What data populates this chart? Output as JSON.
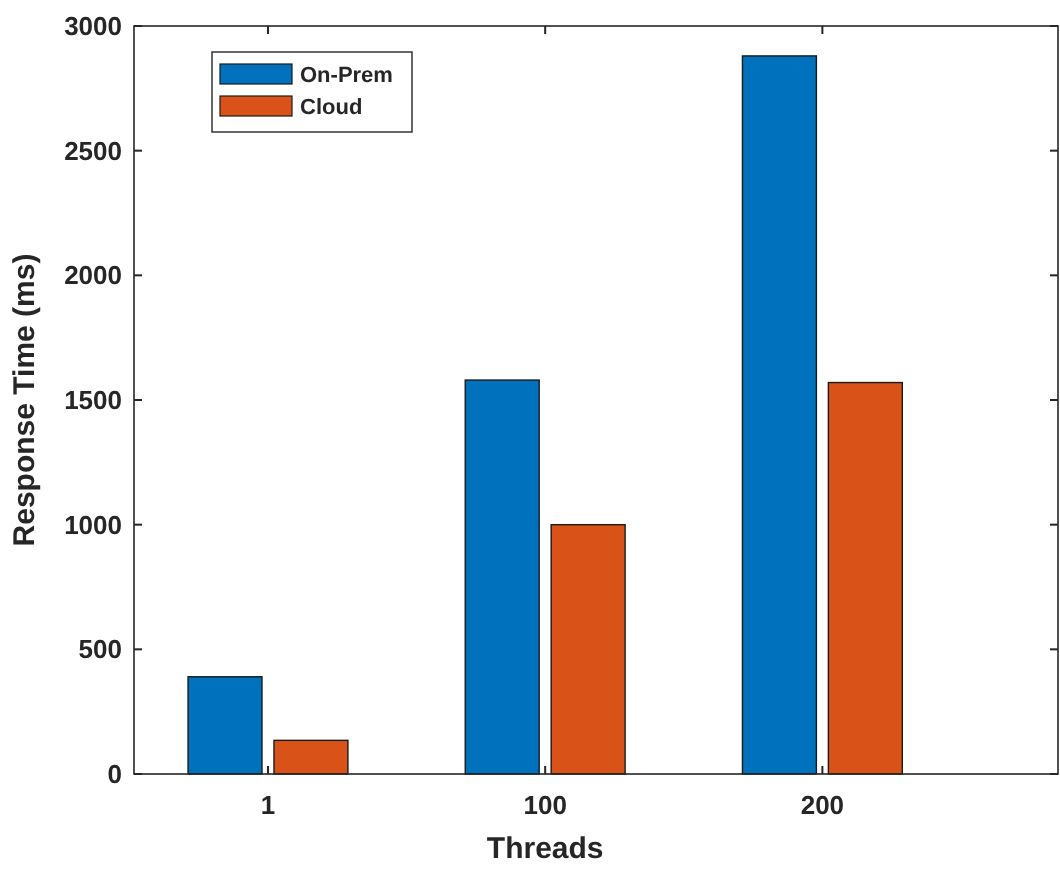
{
  "chart_data": {
    "type": "bar",
    "xlabel": "Threads",
    "ylabel": "Response Time (ms)",
    "categories": [
      "1",
      "100",
      "200"
    ],
    "series": [
      {
        "name": "On-Prem",
        "color": "#0072bd",
        "values": [
          390,
          1580,
          2880
        ]
      },
      {
        "name": "Cloud",
        "color": "#d95319",
        "values": [
          135,
          1000,
          1570
        ]
      }
    ],
    "ylim": [
      0,
      3000
    ],
    "yticks": [
      0,
      500,
      1000,
      1500,
      2000,
      2500,
      3000
    ],
    "legend": "top left"
  }
}
